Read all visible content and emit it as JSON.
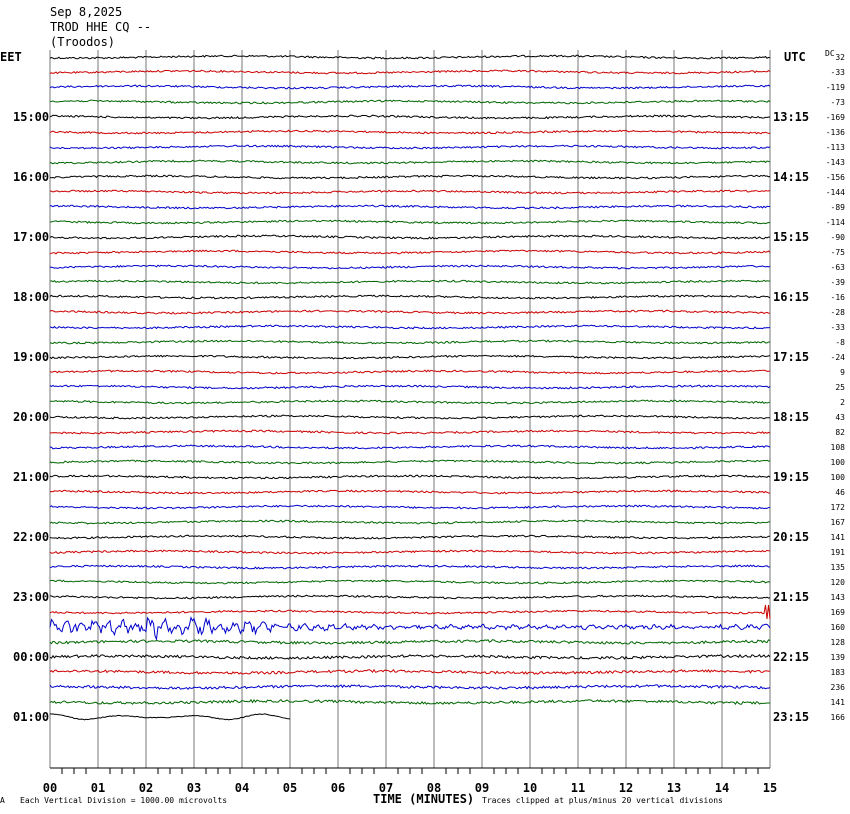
{
  "header": {
    "date": "Sep 8,2025",
    "station": "TROD HHE CQ --",
    "location": "(Troodos)"
  },
  "left_zone_label": "EET",
  "right_zone_label": "UTC",
  "dc_header": "DC",
  "footer": {
    "scale_note": "Each Vertical Division = 1000.00 microvolts",
    "clip_note": "Traces clipped at plus/minus 20 vertical divisions",
    "corner_mark": "A"
  },
  "colors": {
    "trace_cycle": [
      "#000000",
      "#cc0000",
      "#0000cc",
      "#006600"
    ],
    "grid": "#000000"
  },
  "chart_data": {
    "type": "line",
    "xlabel": "TIME (MINUTES)",
    "x_ticks": [
      "00",
      "01",
      "02",
      "03",
      "04",
      "05",
      "06",
      "07",
      "08",
      "09",
      "10",
      "11",
      "12",
      "13",
      "14",
      "15"
    ],
    "x_range": [
      0,
      15
    ],
    "left_time_labels": [
      "15:00",
      "16:00",
      "17:00",
      "18:00",
      "19:00",
      "20:00",
      "21:00",
      "22:00",
      "23:00",
      "00:00",
      "01:00"
    ],
    "right_time_labels": [
      "13:15",
      "14:15",
      "15:15",
      "16:15",
      "17:15",
      "18:15",
      "19:15",
      "20:15",
      "21:15",
      "22:15",
      "23:15"
    ],
    "dc_offsets": [
      "32",
      "-33",
      "-119",
      "-73",
      "-169",
      "-136",
      "-113",
      "-143",
      "-156",
      "-144",
      "-89",
      "-114",
      "-90",
      "-75",
      "-63",
      "-39",
      "-16",
      "-28",
      "-33",
      "-8",
      "-24",
      "9",
      "25",
      "2",
      "43",
      "82",
      "108",
      "100",
      "100",
      "46",
      "172",
      "167",
      "141",
      "191",
      "135",
      "120",
      "143",
      "169",
      "160",
      "128",
      "139",
      "183",
      "236",
      "141",
      "166"
    ],
    "trace_count": 45,
    "last_trace_end_minute": 5,
    "events": [
      {
        "trace": 38,
        "description": "large earthquake signal",
        "start_minute": 0,
        "end_minute": 8
      },
      {
        "trace": 37,
        "description": "clipped spike",
        "start_minute": 14.9,
        "end_minute": 15
      }
    ]
  }
}
